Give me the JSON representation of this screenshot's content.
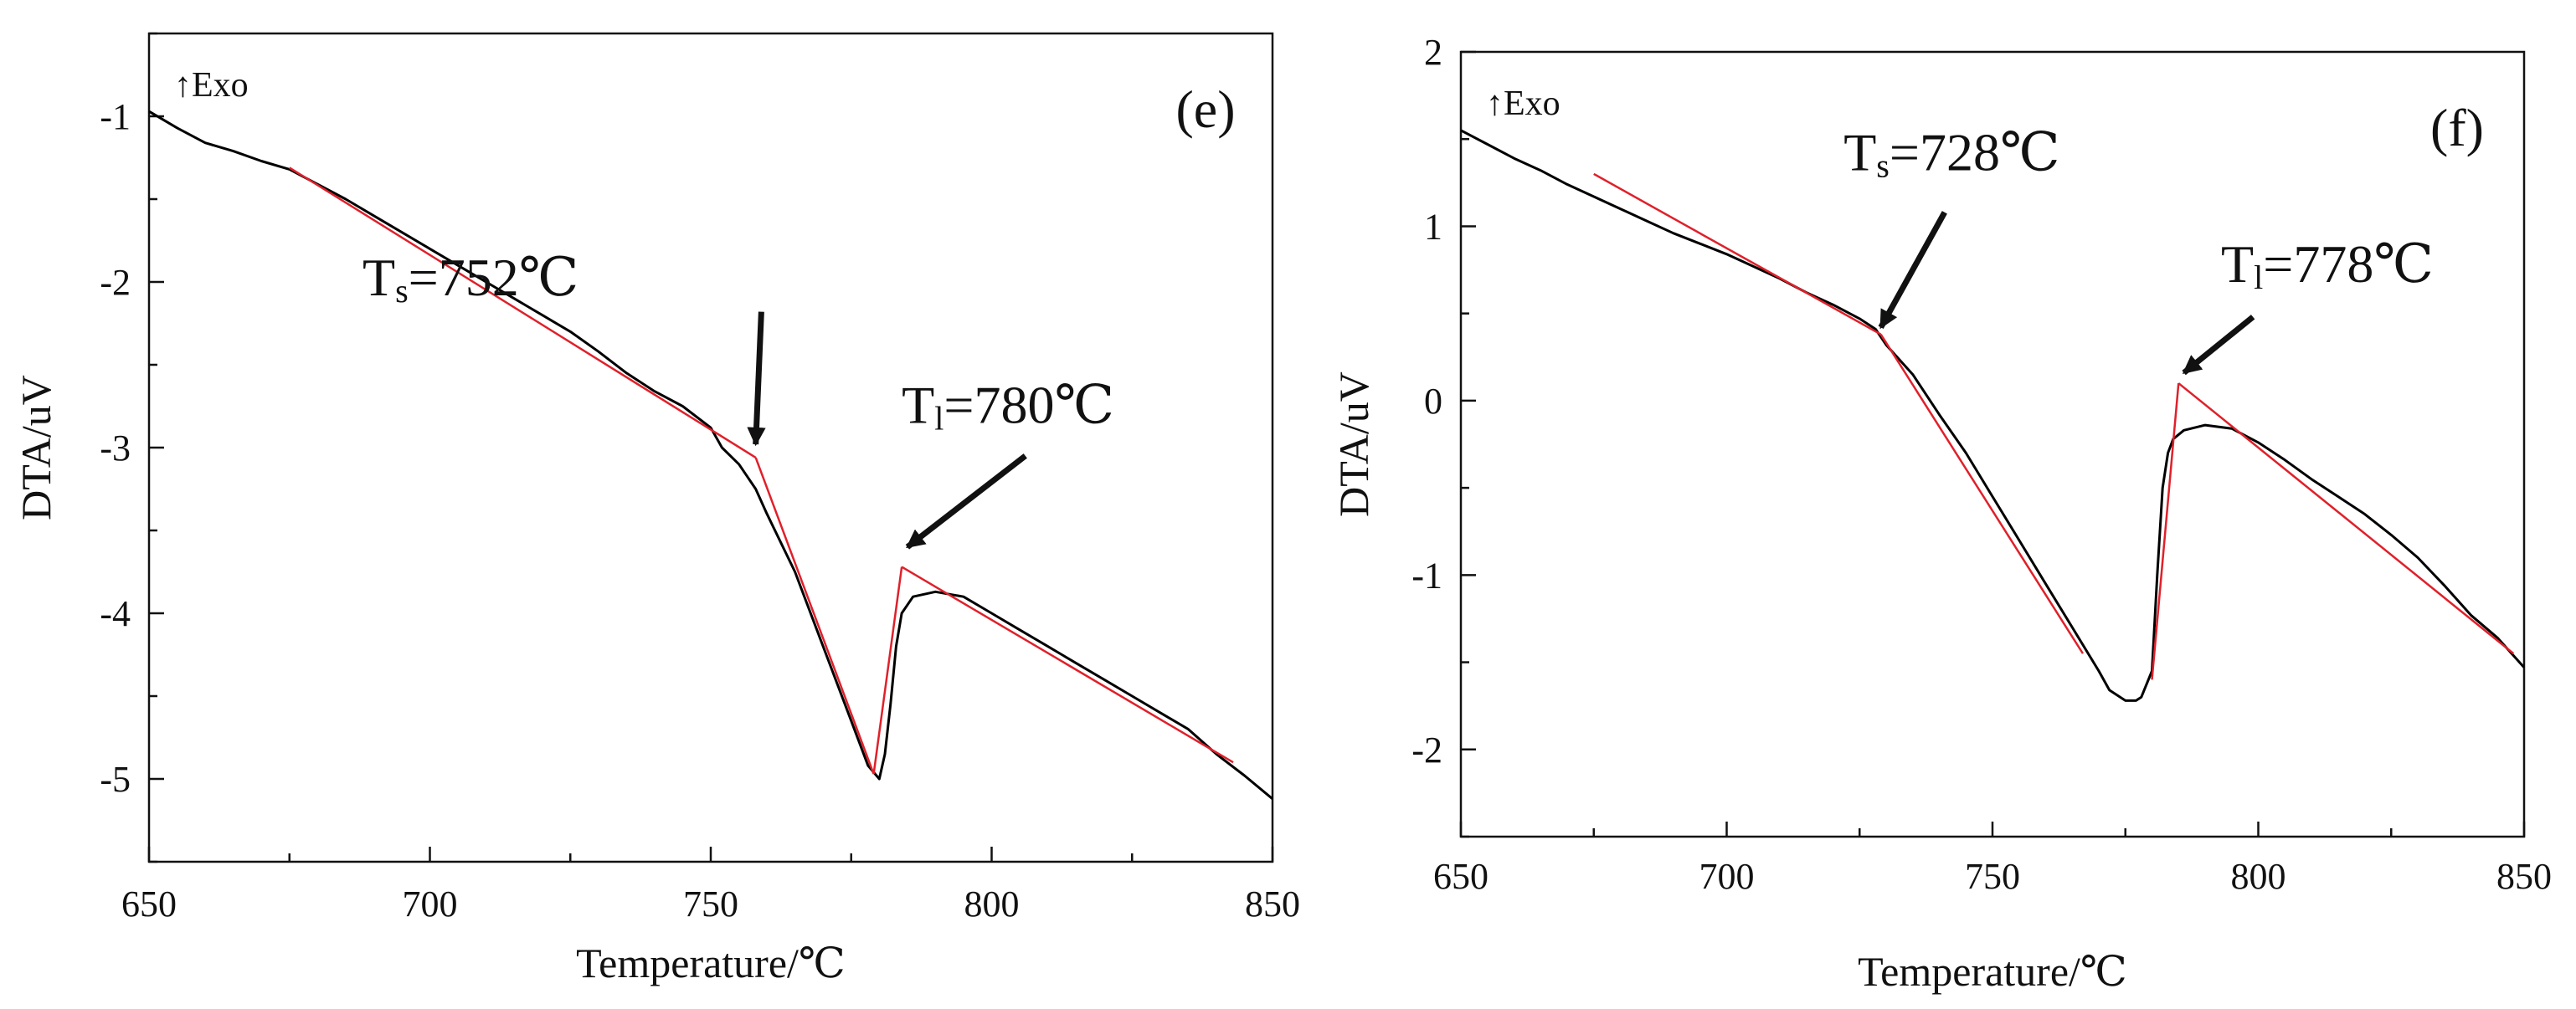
{
  "chart_data": [
    {
      "type": "line",
      "panel_label": "(e)",
      "exo_label": "↑Exo",
      "xlabel": "Temperature/℃",
      "ylabel": "DTA/uV",
      "xlim": [
        650,
        850
      ],
      "ylim": [
        -5.5,
        -0.5
      ],
      "xticks": [
        650,
        700,
        750,
        800,
        850
      ],
      "yticks": [
        -1,
        -2,
        -3,
        -4,
        -5
      ],
      "series": [
        {
          "name": "DTA",
          "color": "#000000",
          "x": [
            650,
            655,
            660,
            665,
            670,
            675,
            680,
            685,
            690,
            695,
            700,
            705,
            710,
            715,
            720,
            725,
            730,
            735,
            740,
            745,
            750,
            752,
            755,
            758,
            760,
            765,
            770,
            775,
            778,
            780,
            781,
            782,
            783,
            784,
            786,
            790,
            795,
            800,
            805,
            810,
            815,
            820,
            825,
            830,
            835,
            840,
            845,
            850
          ],
          "y": [
            -0.97,
            -1.07,
            -1.16,
            -1.21,
            -1.27,
            -1.32,
            -1.41,
            -1.5,
            -1.6,
            -1.7,
            -1.8,
            -1.9,
            -2.0,
            -2.1,
            -2.2,
            -2.3,
            -2.42,
            -2.55,
            -2.66,
            -2.75,
            -2.88,
            -3.0,
            -3.1,
            -3.25,
            -3.4,
            -3.75,
            -4.2,
            -4.65,
            -4.92,
            -5.0,
            -4.85,
            -4.55,
            -4.2,
            -4.0,
            -3.9,
            -3.87,
            -3.9,
            -4.0,
            -4.1,
            -4.2,
            -4.3,
            -4.4,
            -4.5,
            -4.6,
            -4.7,
            -4.85,
            -4.98,
            -5.12
          ]
        }
      ],
      "tangent_lines": {
        "color": "#e0202a",
        "lines": [
          {
            "x": [
              675,
              758
            ],
            "y": [
              -1.31,
              -3.06
            ]
          },
          {
            "x": [
              758,
              779
            ],
            "y": [
              -3.06,
              -4.97
            ]
          },
          {
            "x": [
              779,
              784
            ],
            "y": [
              -4.97,
              -3.72
            ]
          },
          {
            "x": [
              784,
              843
            ],
            "y": [
              -3.72,
              -4.9
            ]
          }
        ]
      },
      "annotations": [
        {
          "main": "T",
          "sub": "s",
          "rest": "=752℃",
          "text_x": 688,
          "text_y": -2.08,
          "arrow_from": [
            759,
            -2.18
          ],
          "arrow_to": [
            758,
            -2.98
          ]
        },
        {
          "main": "T",
          "sub": "l",
          "rest": "=780℃",
          "text_x": 784,
          "text_y": -2.85,
          "arrow_from": [
            806,
            -3.05
          ],
          "arrow_to": [
            785,
            -3.6
          ]
        }
      ]
    },
    {
      "type": "line",
      "panel_label": "(f)",
      "exo_label": "↑Exo",
      "xlabel": "Temperature/℃",
      "ylabel": "DTA/uV",
      "xlim": [
        650,
        850
      ],
      "ylim": [
        -2.5,
        2.0
      ],
      "xticks": [
        650,
        700,
        750,
        800,
        850
      ],
      "yticks": [
        2,
        1,
        0,
        -1,
        -2
      ],
      "series": [
        {
          "name": "DTA",
          "color": "#000000",
          "x": [
            650,
            655,
            660,
            665,
            670,
            675,
            680,
            685,
            690,
            695,
            700,
            705,
            710,
            715,
            720,
            725,
            728,
            730,
            735,
            740,
            745,
            750,
            755,
            760,
            765,
            770,
            772,
            775,
            777,
            778,
            780,
            781,
            782,
            783,
            784,
            786,
            790,
            795,
            800,
            805,
            810,
            815,
            820,
            825,
            830,
            835,
            840,
            845,
            850
          ],
          "y": [
            1.55,
            1.47,
            1.39,
            1.32,
            1.24,
            1.17,
            1.1,
            1.03,
            0.96,
            0.9,
            0.84,
            0.77,
            0.7,
            0.62,
            0.55,
            0.47,
            0.41,
            0.32,
            0.15,
            -0.08,
            -0.3,
            -0.55,
            -0.8,
            -1.05,
            -1.3,
            -1.55,
            -1.66,
            -1.72,
            -1.72,
            -1.7,
            -1.55,
            -1.0,
            -0.5,
            -0.3,
            -0.22,
            -0.17,
            -0.14,
            -0.16,
            -0.24,
            -0.34,
            -0.45,
            -0.55,
            -0.65,
            -0.77,
            -0.9,
            -1.06,
            -1.23,
            -1.36,
            -1.53
          ]
        }
      ],
      "tangent_lines": {
        "color": "#e0202a",
        "lines": [
          {
            "x": [
              675,
              729
            ],
            "y": [
              1.3,
              0.38
            ]
          },
          {
            "x": [
              729,
              767
            ],
            "y": [
              0.38,
              -1.45
            ]
          },
          {
            "x": [
              780,
              785
            ],
            "y": [
              -1.6,
              0.1
            ]
          },
          {
            "x": [
              785,
              848
            ],
            "y": [
              0.1,
              -1.45
            ]
          }
        ]
      },
      "annotations": [
        {
          "main": "T",
          "sub": "s",
          "rest": "=728℃",
          "text_x": 722,
          "text_y": 1.32,
          "arrow_from": [
            741,
            1.08
          ],
          "arrow_to": [
            729,
            0.42
          ]
        },
        {
          "main": "T",
          "sub": "l",
          "rest": "=778℃",
          "text_x": 793,
          "text_y": 0.68,
          "arrow_from": [
            799,
            0.48
          ],
          "arrow_to": [
            786,
            0.16
          ]
        }
      ]
    }
  ]
}
